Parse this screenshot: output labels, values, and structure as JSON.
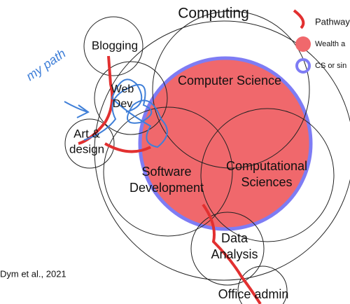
{
  "title": "Computing",
  "nodes": [
    {
      "label": [
        "Blogging"
      ]
    },
    {
      "label": [
        "Web",
        "Dev"
      ]
    },
    {
      "label": [
        "Art &",
        "design"
      ]
    },
    {
      "label": [
        "Computer Science"
      ]
    },
    {
      "label": [
        "Software",
        "Development"
      ]
    },
    {
      "label": [
        "Computational",
        "Sciences"
      ]
    },
    {
      "label": [
        "Data",
        "Analysis"
      ]
    },
    {
      "label": [
        "Office admin"
      ]
    }
  ],
  "legend": [
    "Pathways",
    "Wealth a",
    "CS or sin"
  ],
  "citation": "Dym et al., 2021",
  "annotation": "my path"
}
